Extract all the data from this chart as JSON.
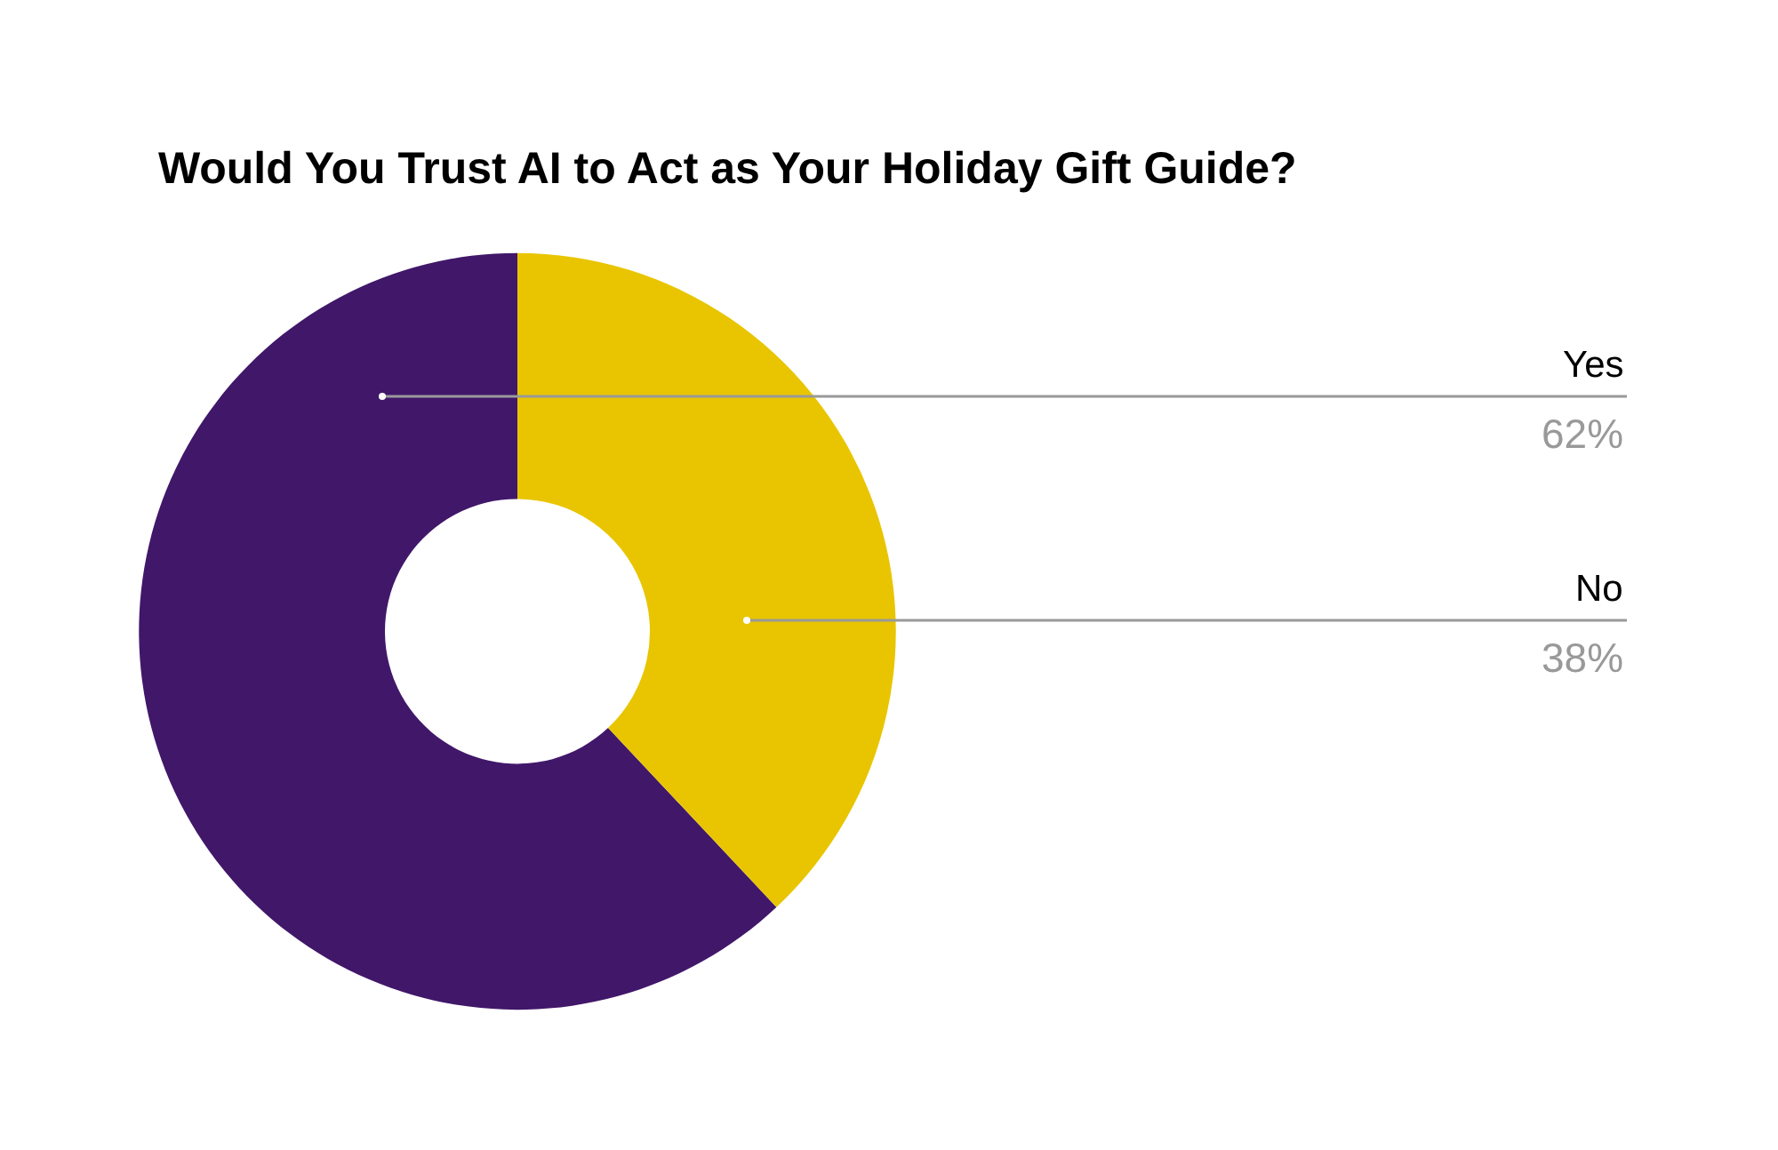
{
  "chart_data": {
    "type": "donut",
    "title": "Would You Trust AI to Act as Your Holiday Gift Guide?",
    "categories": [
      "Yes",
      "No"
    ],
    "values": [
      62,
      38
    ],
    "value_labels": [
      "62%",
      "38%"
    ],
    "colors": [
      "#41176a",
      "#e8c500"
    ],
    "legend": false
  }
}
